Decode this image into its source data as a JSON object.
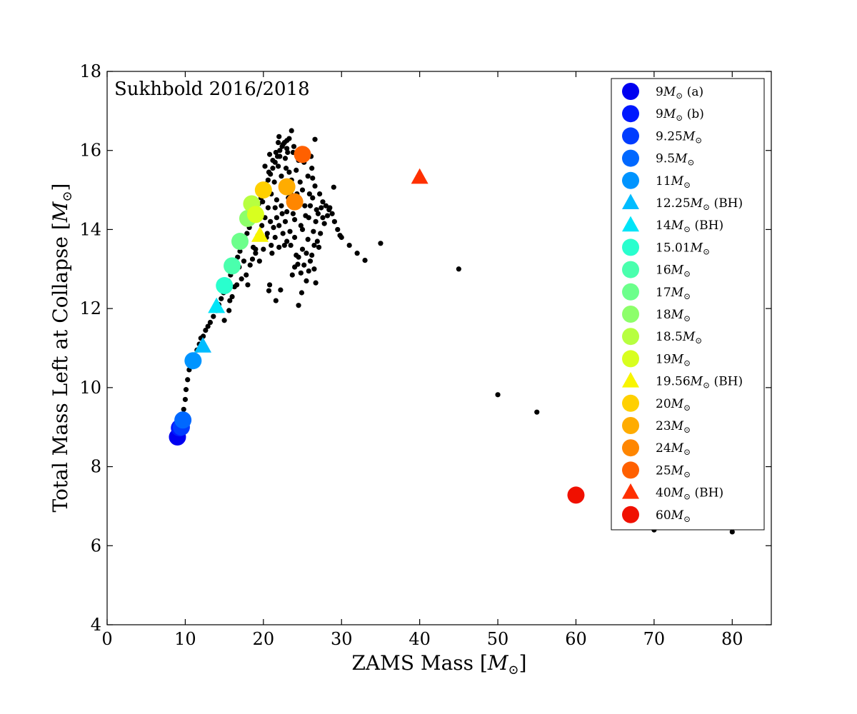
{
  "chart_data": {
    "type": "scatter",
    "annotation": "Sukhbold 2016/2018",
    "xlabel": "ZAMS Mass [",
    "xlabel_math": "M",
    "xlabel_close": "]",
    "ylabel": "Total Mass Left at Collapse [",
    "ylabel_math": "M",
    "ylabel_close": "]",
    "xlim": [
      0,
      85
    ],
    "ylim": [
      4,
      18
    ],
    "xticks": [
      0,
      10,
      20,
      30,
      40,
      50,
      60,
      70,
      80
    ],
    "yticks": [
      4,
      6,
      8,
      10,
      12,
      14,
      16,
      18
    ],
    "legend_position": "top-right",
    "background_series": {
      "color": "#000000",
      "points": [
        [
          9.0,
          8.75
        ],
        [
          9.2,
          8.9
        ],
        [
          9.4,
          9.05
        ],
        [
          9.6,
          9.2
        ],
        [
          9.8,
          9.45
        ],
        [
          10.0,
          9.7
        ],
        [
          10.1,
          9.95
        ],
        [
          10.3,
          10.2
        ],
        [
          10.5,
          10.45
        ],
        [
          10.7,
          10.6
        ],
        [
          11.2,
          10.75
        ],
        [
          11.5,
          10.95
        ],
        [
          11.8,
          11.1
        ],
        [
          12.0,
          11.25
        ],
        [
          12.3,
          11.3
        ],
        [
          12.6,
          11.45
        ],
        [
          12.9,
          11.55
        ],
        [
          13.2,
          11.65
        ],
        [
          13.6,
          11.8
        ],
        [
          14.0,
          11.95
        ],
        [
          14.3,
          12.1
        ],
        [
          14.6,
          12.25
        ],
        [
          14.9,
          12.4
        ],
        [
          15.2,
          12.55
        ],
        [
          15.5,
          12.7
        ],
        [
          15.8,
          12.85
        ],
        [
          16.1,
          13.0
        ],
        [
          16.4,
          13.15
        ],
        [
          16.7,
          13.3
        ],
        [
          17.0,
          13.45
        ],
        [
          17.3,
          13.6
        ],
        [
          17.6,
          13.75
        ],
        [
          17.9,
          13.9
        ],
        [
          18.2,
          14.05
        ],
        [
          18.5,
          14.2
        ],
        [
          18.8,
          14.35
        ],
        [
          19.1,
          14.5
        ],
        [
          19.4,
          14.65
        ],
        [
          19.7,
          14.8
        ],
        [
          20.0,
          14.95
        ],
        [
          20.3,
          15.1
        ],
        [
          20.6,
          15.25
        ],
        [
          20.9,
          15.4
        ],
        [
          21.2,
          15.55
        ],
        [
          21.5,
          15.7
        ],
        [
          21.8,
          15.85
        ],
        [
          22.1,
          16.0
        ],
        [
          22.4,
          16.1
        ],
        [
          22.7,
          16.2
        ],
        [
          23.0,
          16.25
        ],
        [
          23.3,
          16.3
        ],
        [
          23.6,
          16.5
        ],
        [
          22.0,
          16.35
        ],
        [
          26.6,
          16.28
        ],
        [
          15.0,
          11.7
        ],
        [
          15.6,
          11.95
        ],
        [
          16.0,
          12.3
        ],
        [
          16.6,
          12.6
        ],
        [
          17.2,
          12.75
        ],
        [
          17.8,
          12.85
        ],
        [
          18.3,
          13.1
        ],
        [
          18.6,
          13.25
        ],
        [
          19.0,
          13.5
        ],
        [
          19.5,
          13.2
        ],
        [
          20.0,
          13.5
        ],
        [
          20.5,
          13.9
        ],
        [
          21.0,
          13.6
        ],
        [
          21.5,
          13.8
        ],
        [
          22.0,
          13.55
        ],
        [
          22.5,
          13.9
        ],
        [
          23.0,
          13.7
        ],
        [
          23.5,
          13.6
        ],
        [
          24.0,
          13.8
        ],
        [
          24.5,
          13.3
        ],
        [
          25.0,
          13.5
        ],
        [
          25.5,
          13.4
        ],
        [
          26.0,
          13.2
        ],
        [
          26.5,
          13.0
        ],
        [
          26.7,
          12.65
        ],
        [
          25.5,
          12.7
        ],
        [
          24.9,
          12.4
        ],
        [
          24.5,
          12.08
        ],
        [
          22.2,
          12.47
        ],
        [
          21.6,
          12.2
        ],
        [
          20.7,
          12.45
        ],
        [
          20.8,
          12.6
        ],
        [
          24.0,
          13.05
        ],
        [
          24.4,
          13.12
        ],
        [
          23.7,
          12.85
        ],
        [
          22.7,
          13.6
        ],
        [
          21.3,
          14.05
        ],
        [
          21.7,
          14.3
        ],
        [
          22.3,
          14.6
        ],
        [
          22.8,
          14.2
        ],
        [
          23.2,
          14.8
        ],
        [
          23.8,
          14.4
        ],
        [
          24.3,
          14.9
        ],
        [
          24.8,
          14.1
        ],
        [
          25.3,
          14.6
        ],
        [
          25.8,
          14.3
        ],
        [
          26.3,
          14.8
        ],
        [
          26.8,
          14.5
        ],
        [
          27.2,
          14.9
        ],
        [
          27.6,
          14.7
        ],
        [
          28.0,
          14.6
        ],
        [
          28.4,
          14.5
        ],
        [
          28.8,
          14.4
        ],
        [
          29.1,
          14.2
        ],
        [
          29.5,
          14.0
        ],
        [
          29.8,
          13.85
        ],
        [
          30.0,
          13.8
        ],
        [
          28.2,
          14.35
        ],
        [
          27.8,
          14.15
        ],
        [
          27.3,
          13.9
        ],
        [
          26.9,
          13.7
        ],
        [
          27.0,
          14.4
        ],
        [
          27.4,
          14.55
        ],
        [
          29.0,
          15.07
        ],
        [
          28.5,
          14.55
        ],
        [
          31.0,
          13.6
        ],
        [
          32.0,
          13.4
        ],
        [
          33.0,
          13.22
        ],
        [
          35.0,
          13.65
        ],
        [
          45.0,
          13.0
        ],
        [
          50.0,
          9.82
        ],
        [
          55.0,
          9.38
        ],
        [
          70.0,
          6.4
        ],
        [
          80.0,
          6.35
        ],
        [
          20.2,
          15.6
        ],
        [
          20.8,
          15.9
        ],
        [
          21.4,
          15.2
        ],
        [
          21.9,
          15.6
        ],
        [
          22.3,
          15.35
        ],
        [
          22.8,
          15.8
        ],
        [
          23.3,
          15.45
        ],
        [
          23.8,
          15.95
        ],
        [
          24.2,
          15.5
        ],
        [
          24.7,
          15.2
        ],
        [
          25.2,
          15.7
        ],
        [
          25.7,
          15.35
        ],
        [
          26.2,
          15.55
        ],
        [
          26.6,
          15.1
        ],
        [
          25.9,
          14.9
        ],
        [
          25.0,
          15.0
        ],
        [
          24.1,
          14.6
        ],
        [
          23.5,
          14.9
        ],
        [
          22.6,
          15.0
        ],
        [
          21.7,
          14.75
        ],
        [
          21.0,
          14.9
        ],
        [
          20.6,
          14.55
        ],
        [
          20.2,
          14.3
        ],
        [
          19.8,
          14.1
        ],
        [
          20.4,
          13.8
        ],
        [
          21.1,
          13.4
        ],
        [
          22.0,
          14.1
        ],
        [
          23.0,
          14.45
        ],
        [
          24.0,
          14.25
        ],
        [
          25.0,
          14.0
        ],
        [
          25.7,
          13.75
        ],
        [
          26.4,
          13.95
        ],
        [
          26.0,
          14.6
        ],
        [
          25.4,
          14.35
        ],
        [
          24.6,
          14.75
        ],
        [
          23.6,
          15.25
        ],
        [
          22.9,
          15.55
        ],
        [
          22.1,
          15.85
        ],
        [
          21.6,
          15.95
        ],
        [
          21.2,
          15.75
        ],
        [
          20.7,
          15.45
        ],
        [
          20.3,
          15.15
        ],
        [
          19.9,
          14.7
        ],
        [
          19.6,
          14.45
        ],
        [
          23.1,
          15.95
        ],
        [
          24.5,
          15.75
        ],
        [
          25.6,
          15.9
        ],
        [
          26.3,
          15.3
        ],
        [
          26.7,
          14.2
        ],
        [
          26.5,
          13.6
        ],
        [
          25.2,
          13.1
        ],
        [
          24.2,
          13.35
        ],
        [
          23.4,
          13.95
        ],
        [
          22.4,
          14.4
        ],
        [
          21.5,
          14.55
        ],
        [
          20.9,
          14.2
        ],
        [
          18.7,
          13.55
        ],
        [
          19.3,
          13.85
        ],
        [
          17.5,
          13.2
        ],
        [
          16.9,
          13.05
        ],
        [
          16.3,
          12.55
        ],
        [
          15.7,
          12.2
        ],
        [
          18.0,
          12.6
        ],
        [
          19.0,
          13.4
        ],
        [
          24.8,
          12.9
        ],
        [
          25.8,
          12.95
        ],
        [
          26.2,
          13.35
        ],
        [
          27.1,
          13.55
        ],
        [
          27.6,
          14.3
        ],
        [
          26.1,
          15.85
        ],
        [
          24.9,
          16.05
        ],
        [
          23.9,
          16.1
        ],
        [
          23.0,
          16.05
        ],
        [
          22.5,
          16.15
        ],
        [
          21.9,
          16.2
        ]
      ]
    },
    "series": [
      {
        "name": "9M⊙ (a)",
        "legend": {
          "mass": "9",
          "suffix": " (a)"
        },
        "marker": "circle",
        "color": "#0000f0",
        "x": 9.0,
        "y": 8.75
      },
      {
        "name": "9M⊙ (b)",
        "legend": {
          "mass": "9",
          "suffix": " (b)"
        },
        "marker": "circle",
        "color": "#0018ff",
        "x": 9.25,
        "y": 8.98
      },
      {
        "name": "9.25M⊙",
        "legend": {
          "mass": "9.25",
          "suffix": ""
        },
        "marker": "circle",
        "color": "#003cff",
        "x": 9.5,
        "y": 9.0
      },
      {
        "name": "9.5M⊙",
        "legend": {
          "mass": "9.5",
          "suffix": ""
        },
        "marker": "circle",
        "color": "#0068ff",
        "x": 9.7,
        "y": 9.18
      },
      {
        "name": "11M⊙",
        "legend": {
          "mass": "11",
          "suffix": ""
        },
        "marker": "circle",
        "color": "#0094ff",
        "x": 11.0,
        "y": 10.68
      },
      {
        "name": "12.25M⊙ (BH)",
        "legend": {
          "mass": "12.25",
          "suffix": " (BH)"
        },
        "marker": "triangle",
        "color": "#00bcff",
        "x": 12.25,
        "y": 11.05
      },
      {
        "name": "14M⊙ (BH)",
        "legend": {
          "mass": "14",
          "suffix": " (BH)"
        },
        "marker": "triangle",
        "color": "#00e4f8",
        "x": 14.0,
        "y": 12.05
      },
      {
        "name": "15.01M⊙",
        "legend": {
          "mass": "15.01",
          "suffix": ""
        },
        "marker": "circle",
        "color": "#29ffce",
        "x": 15.01,
        "y": 12.58
      },
      {
        "name": "16M⊙",
        "legend": {
          "mass": "16",
          "suffix": ""
        },
        "marker": "circle",
        "color": "#4affad",
        "x": 16.0,
        "y": 13.08
      },
      {
        "name": "17M⊙",
        "legend": {
          "mass": "17",
          "suffix": ""
        },
        "marker": "circle",
        "color": "#6cff8b",
        "x": 17.0,
        "y": 13.7
      },
      {
        "name": "18M⊙",
        "legend": {
          "mass": "18",
          "suffix": ""
        },
        "marker": "circle",
        "color": "#8dff6a",
        "x": 18.0,
        "y": 14.28
      },
      {
        "name": "18.5M⊙",
        "legend": {
          "mass": "18.5",
          "suffix": ""
        },
        "marker": "circle",
        "color": "#b7ff40",
        "x": 18.5,
        "y": 14.65
      },
      {
        "name": "19M⊙",
        "legend": {
          "mass": "19",
          "suffix": ""
        },
        "marker": "circle",
        "color": "#d8ff1f",
        "x": 19.0,
        "y": 14.38
      },
      {
        "name": "19.56M⊙ (BH)",
        "legend": {
          "mass": "19.56",
          "suffix": " (BH)"
        },
        "marker": "triangle",
        "color": "#f8f500",
        "x": 19.56,
        "y": 13.85
      },
      {
        "name": "20M⊙",
        "legend": {
          "mass": "20",
          "suffix": ""
        },
        "marker": "circle",
        "color": "#ffd000",
        "x": 20.0,
        "y": 15.0
      },
      {
        "name": "23M⊙",
        "legend": {
          "mass": "23",
          "suffix": ""
        },
        "marker": "circle",
        "color": "#ffac00",
        "x": 23.0,
        "y": 15.08
      },
      {
        "name": "24M⊙",
        "legend": {
          "mass": "24",
          "suffix": ""
        },
        "marker": "circle",
        "color": "#ff8600",
        "x": 24.0,
        "y": 14.7
      },
      {
        "name": "25M⊙",
        "legend": {
          "mass": "25",
          "suffix": ""
        },
        "marker": "circle",
        "color": "#ff6000",
        "x": 25.0,
        "y": 15.9
      },
      {
        "name": "40M⊙ (BH)",
        "legend": {
          "mass": "40",
          "suffix": " (BH)"
        },
        "marker": "triangle",
        "color": "#ff3000",
        "x": 40.0,
        "y": 15.32
      },
      {
        "name": "60M⊙",
        "legend": {
          "mass": "60",
          "suffix": ""
        },
        "marker": "circle",
        "color": "#f01000",
        "x": 60.0,
        "y": 7.28
      }
    ]
  }
}
